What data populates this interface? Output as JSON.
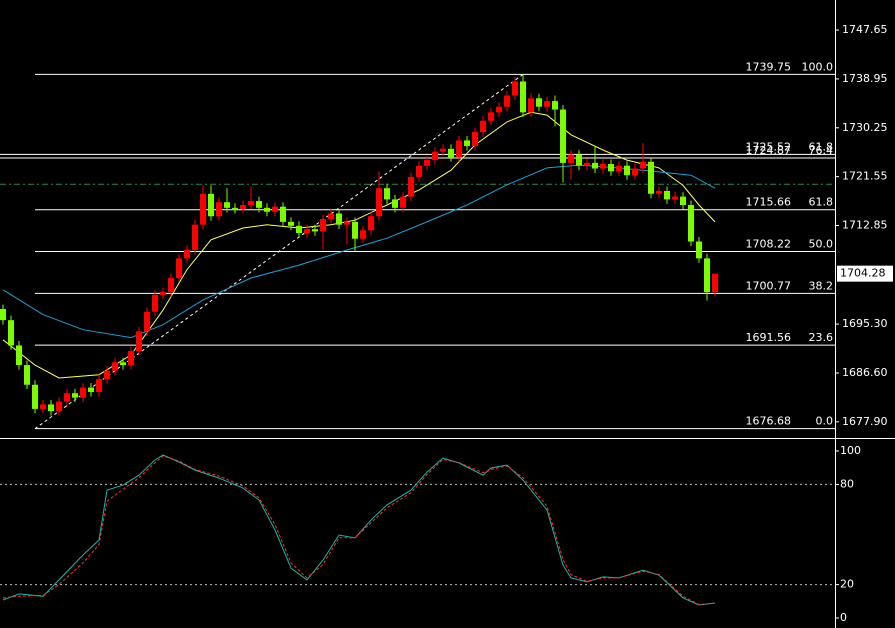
{
  "chart_data": [
    {
      "type": "candlestick",
      "open": [
        1698.0,
        1696.0,
        1691.5,
        1688.0,
        1684.5,
        1680.2,
        1681.0,
        1679.8,
        1681.5,
        1683.0,
        1682.2,
        1684.0,
        1683.2,
        1685.5,
        1687.0,
        1688.5,
        1688.0,
        1690.5,
        1694.0,
        1697.5,
        1700.5,
        1701.0,
        1703.5,
        1707.0,
        1708.5,
        1713.0,
        1718.5,
        1714.5,
        1717.0,
        1716.0,
        1715.8,
        1716.5,
        1717.2,
        1716.0,
        1715.3,
        1716.2,
        1713.5,
        1712.8,
        1711.5,
        1712.2,
        1711.8,
        1714.0,
        1715.0,
        1713.0,
        1713.5,
        1710.5,
        1712.0,
        1714.5,
        1719.5,
        1717.5,
        1716.0,
        1718.0,
        1721.5,
        1723.5,
        1724.5,
        1726.0,
        1726.5,
        1725.0,
        1728.0,
        1727.0,
        1729.5,
        1731.5,
        1733.0,
        1734.0,
        1736.0,
        1738.5,
        1733.0,
        1735.5,
        1734.0,
        1735.0,
        1733.5,
        1724.0,
        1725.5,
        1723.5,
        1724.0,
        1723.0,
        1723.8,
        1722.5,
        1723.5,
        1721.8,
        1723.0,
        1724.2,
        1718.5,
        1719.0,
        1717.5,
        1718.0,
        1716.5,
        1710.0,
        1707.0,
        1701.0
      ],
      "high": [
        1698.8,
        1696.8,
        1692.3,
        1688.8,
        1685.3,
        1681.8,
        1681.8,
        1682.3,
        1683.8,
        1683.8,
        1684.8,
        1684.8,
        1686.3,
        1687.8,
        1689.3,
        1689.3,
        1691.3,
        1694.8,
        1698.3,
        1701.3,
        1701.8,
        1704.3,
        1707.8,
        1709.3,
        1713.8,
        1720.0,
        1720.0,
        1717.8,
        1719.5,
        1716.8,
        1717.3,
        1719.8,
        1718.0,
        1716.8,
        1717.0,
        1717.0,
        1714.3,
        1713.6,
        1713.0,
        1713.0,
        1714.8,
        1715.8,
        1715.8,
        1714.3,
        1714.3,
        1712.8,
        1715.3,
        1722.5,
        1720.3,
        1718.3,
        1718.8,
        1722.3,
        1724.3,
        1725.3,
        1726.8,
        1727.3,
        1727.3,
        1728.8,
        1728.8,
        1730.3,
        1732.3,
        1733.8,
        1734.8,
        1736.8,
        1739.3,
        1739.75,
        1736.3,
        1736.3,
        1735.8,
        1736.0,
        1734.3,
        1726.3,
        1726.3,
        1724.8,
        1727.0,
        1724.6,
        1724.6,
        1724.3,
        1724.3,
        1723.8,
        1727.5,
        1725.0,
        1719.8,
        1719.8,
        1718.8,
        1718.8,
        1717.3,
        1710.8,
        1707.8,
        1704.28
      ],
      "low": [
        1695.2,
        1690.7,
        1687.2,
        1683.7,
        1679.4,
        1679.4,
        1679.0,
        1679.0,
        1680.7,
        1681.4,
        1681.4,
        1682.4,
        1682.4,
        1684.7,
        1686.2,
        1687.2,
        1687.2,
        1689.7,
        1693.2,
        1696.7,
        1699.7,
        1700.2,
        1702.7,
        1706.2,
        1707.7,
        1712.2,
        1713.7,
        1713.7,
        1715.2,
        1715.0,
        1715.0,
        1715.7,
        1715.2,
        1714.5,
        1714.5,
        1712.7,
        1712.0,
        1710.7,
        1710.7,
        1711.0,
        1708.5,
        1713.2,
        1712.2,
        1709.5,
        1708.2,
        1709.7,
        1711.2,
        1713.7,
        1716.7,
        1715.2,
        1715.2,
        1717.2,
        1720.7,
        1722.7,
        1723.7,
        1725.2,
        1724.2,
        1724.2,
        1726.2,
        1726.2,
        1728.7,
        1730.7,
        1732.2,
        1733.2,
        1735.2,
        1732.2,
        1732.2,
        1733.2,
        1733.2,
        1730.5,
        1720.5,
        1721.0,
        1722.7,
        1722.7,
        1722.2,
        1722.2,
        1721.7,
        1721.7,
        1721.0,
        1721.0,
        1722.2,
        1717.7,
        1717.7,
        1716.7,
        1716.7,
        1715.7,
        1709.2,
        1706.2,
        1699.5,
        1700.2
      ],
      "close": [
        1696.0,
        1691.5,
        1688.0,
        1684.5,
        1680.2,
        1681.0,
        1679.8,
        1681.5,
        1683.0,
        1682.2,
        1684.0,
        1683.2,
        1685.5,
        1687.0,
        1688.5,
        1688.0,
        1690.5,
        1694.0,
        1697.5,
        1700.5,
        1701.0,
        1703.5,
        1707.0,
        1708.5,
        1713.0,
        1718.5,
        1714.5,
        1717.0,
        1716.0,
        1715.8,
        1716.5,
        1717.2,
        1716.0,
        1715.3,
        1716.2,
        1713.5,
        1712.8,
        1711.5,
        1712.2,
        1711.8,
        1714.0,
        1715.0,
        1713.0,
        1713.5,
        1710.5,
        1712.0,
        1714.5,
        1719.5,
        1717.5,
        1716.0,
        1718.0,
        1721.5,
        1723.5,
        1724.5,
        1726.0,
        1726.5,
        1725.0,
        1728.0,
        1727.0,
        1729.5,
        1731.5,
        1733.0,
        1734.0,
        1736.0,
        1738.5,
        1733.0,
        1735.5,
        1734.0,
        1735.0,
        1733.5,
        1724.0,
        1725.5,
        1723.5,
        1724.0,
        1723.0,
        1723.8,
        1722.5,
        1723.5,
        1721.8,
        1723.0,
        1724.2,
        1718.5,
        1719.0,
        1717.5,
        1718.0,
        1716.5,
        1710.0,
        1707.0,
        1701.0,
        1704.28
      ],
      "up_color": "#ff0000",
      "down_color": "#7cfc00",
      "ylim": [
        1675.2,
        1753.0
      ],
      "yticks": [
        1747.65,
        1738.95,
        1730.25,
        1721.55,
        1712.85,
        {
          "value": 1695.3,
          "label": "1695.30"
        },
        {
          "value": 1686.6,
          "label": "1686.60"
        },
        {
          "value": 1677.9,
          "label": "1677.90"
        }
      ],
      "last_price": 1704.28,
      "series": [
        {
          "color": "#ffff66",
          "x": [
            0,
            4,
            7,
            12,
            16,
            20,
            23,
            26,
            30,
            33,
            37,
            41,
            44,
            48,
            52,
            56,
            59,
            63,
            66,
            68,
            71,
            75,
            78,
            82,
            85,
            87,
            89
          ],
          "values": [
            1692.5,
            1688,
            1685.7,
            1686.3,
            1689.8,
            1697.8,
            1705,
            1710.3,
            1712.4,
            1713,
            1712.4,
            1713,
            1713.8,
            1716.5,
            1719.2,
            1722.7,
            1727.2,
            1731.3,
            1733,
            1732.5,
            1729,
            1726.3,
            1724.5,
            1723.1,
            1720,
            1716.5,
            1713.5
          ]
        },
        {
          "color": "#1e9fd6",
          "x": [
            0,
            5,
            10,
            16,
            20,
            25,
            31,
            37,
            43,
            48,
            53,
            58,
            63,
            68,
            72,
            77,
            82,
            86,
            89
          ],
          "values": [
            1701.4,
            1697,
            1694.3,
            1692.9,
            1695.2,
            1699.6,
            1703.5,
            1705.8,
            1708.5,
            1710.6,
            1713.5,
            1716.5,
            1720.1,
            1723.1,
            1723.6,
            1723.1,
            1722.4,
            1721.8,
            1719.5
          ]
        }
      ],
      "trend": {
        "x": [
          4,
          65
        ],
        "values": [
          1676.68,
          1739.75
        ]
      },
      "hlines": [
        {
          "value": 1720.2,
          "color": "#2e8b57"
        }
      ],
      "fibs": [
        {
          "x": 4,
          "levels": [
            {
              "price": 1739.75,
              "level": {
                "value": 100,
                "label": "100.0"
              }
            },
            {
              "price": 1715.66,
              "level": 61.8
            },
            {
              "price": 1708.22,
              "level": {
                "value": 50,
                "label": "50.0"
              }
            },
            {
              "price": 1700.77,
              "level": 38.2
            },
            {
              "price": 1691.56,
              "level": 23.6
            },
            {
              "price": 1676.68,
              "level": {
                "value": 0,
                "label": "0.0"
              }
            }
          ]
        },
        {
          "levels": [
            {
              "price": 1725.52,
              "level": 61.8
            },
            {
              "price": 1724.87,
              "level": 76.4
            }
          ]
        }
      ]
    },
    {
      "type": "line",
      "x": [
        0,
        2,
        5,
        7,
        10,
        12,
        13,
        15,
        17,
        19,
        20,
        22,
        24,
        27,
        30,
        32,
        34,
        36,
        38,
        40,
        42,
        44,
        46,
        48,
        51,
        53,
        55,
        57,
        60,
        61,
        63,
        65,
        68,
        70,
        71,
        73,
        75,
        77,
        80,
        82,
        85,
        87,
        89
      ],
      "ylim": [
        -6,
        106.6
      ],
      "yticks": [
        100,
        80,
        20,
        0
      ],
      "levels": [
        80,
        20
      ],
      "series": [
        {
          "color": "#20b2aa",
          "dash": false,
          "values": [
            10.8,
            14.4,
            13,
            22.8,
            37.7,
            46.7,
            76.6,
            79.6,
            85.6,
            94.6,
            97.6,
            93.4,
            88.6,
            83.8,
            77.8,
            70.7,
            52.7,
            29.9,
            22.8,
            34.7,
            49.7,
            47.9,
            58.7,
            67.7,
            76.6,
            87.4,
            95.8,
            92.8,
            85.6,
            89.8,
            91.6,
            82.6,
            64.7,
            31.7,
            24,
            21.6,
            24.6,
            24,
            28.7,
            25.7,
            12,
            7.8,
            9
          ]
        },
        {
          "color": "#ff3030",
          "dash": true,
          "values": [
            12,
            13,
            13.5,
            20,
            33,
            44,
            70,
            77,
            84,
            93,
            97,
            94,
            89,
            85,
            79,
            72,
            56,
            33,
            24,
            32,
            48,
            48,
            57,
            66,
            75,
            86,
            95,
            93,
            87,
            89,
            91,
            84,
            67,
            35,
            26,
            22,
            24,
            24,
            28,
            26,
            13,
            8,
            9
          ]
        }
      ]
    }
  ]
}
